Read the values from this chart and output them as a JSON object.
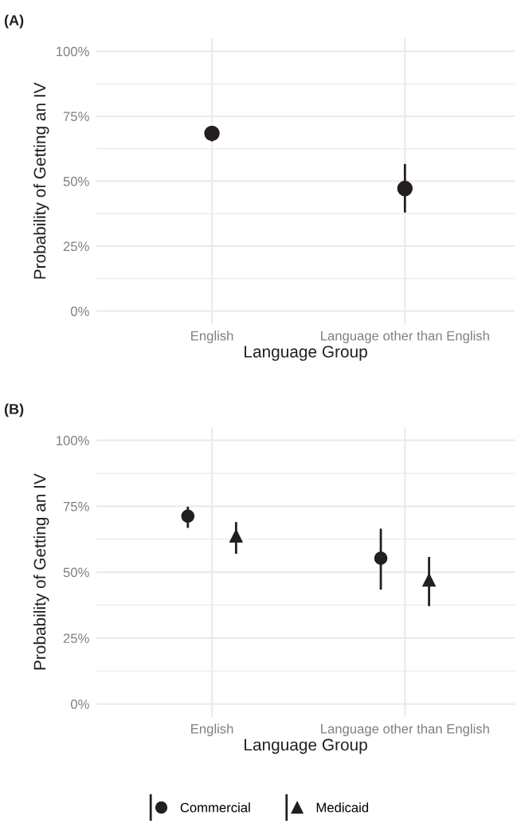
{
  "chart_data": [
    {
      "type": "scatter",
      "title": "(A)",
      "xlabel": "Language Group",
      "ylabel": "Probability of Getting an IV",
      "categories": [
        "English",
        "Language other than English"
      ],
      "ylim": [
        -5,
        105
      ],
      "yticks": [
        {
          "value": 0,
          "label": "0%"
        },
        {
          "value": 12.5,
          "label": null
        },
        {
          "value": 25,
          "label": "25%"
        },
        {
          "value": 37.5,
          "label": null
        },
        {
          "value": 50,
          "label": "50%"
        },
        {
          "value": 62.5,
          "label": null
        },
        {
          "value": 75,
          "label": "75%"
        },
        {
          "value": 87.5,
          "label": null
        },
        {
          "value": 100,
          "label": "100%"
        }
      ],
      "grid": true,
      "legend": false,
      "series": [
        {
          "color": "#231f20",
          "marker": "circle",
          "values": [
            68.4,
            47.2
          ],
          "errors": [
            [
              65.3,
              71.0
            ],
            [
              37.9,
              56.6
            ]
          ]
        }
      ]
    },
    {
      "type": "scatter",
      "title": "(B)",
      "xlabel": "Language Group",
      "ylabel": "Probability of Getting an IV",
      "categories": [
        "English",
        "Language other than English"
      ],
      "ylim": [
        -5,
        105
      ],
      "yticks": [
        {
          "value": 0,
          "label": "0%"
        },
        {
          "value": 12.5,
          "label": null
        },
        {
          "value": 25,
          "label": "25%"
        },
        {
          "value": 37.5,
          "label": null
        },
        {
          "value": 50,
          "label": "50%"
        },
        {
          "value": 62.5,
          "label": null
        },
        {
          "value": 75,
          "label": "75%"
        },
        {
          "value": 87.5,
          "label": null
        },
        {
          "value": 100,
          "label": "100%"
        }
      ],
      "grid": true,
      "legend": "bottom",
      "series": [
        {
          "name": "Commercial",
          "color": "#231f20",
          "marker": "circle",
          "values": [
            71.2,
            55.3
          ],
          "errors": [
            [
              66.8,
              74.8
            ],
            [
              43.4,
              66.5
            ]
          ]
        },
        {
          "name": "Medicaid",
          "color": "#231f20",
          "marker": "triangle",
          "values": [
            63.7,
            47.0
          ],
          "errors": [
            [
              57.0,
              69.0
            ],
            [
              37.1,
              55.8
            ]
          ]
        }
      ]
    }
  ]
}
